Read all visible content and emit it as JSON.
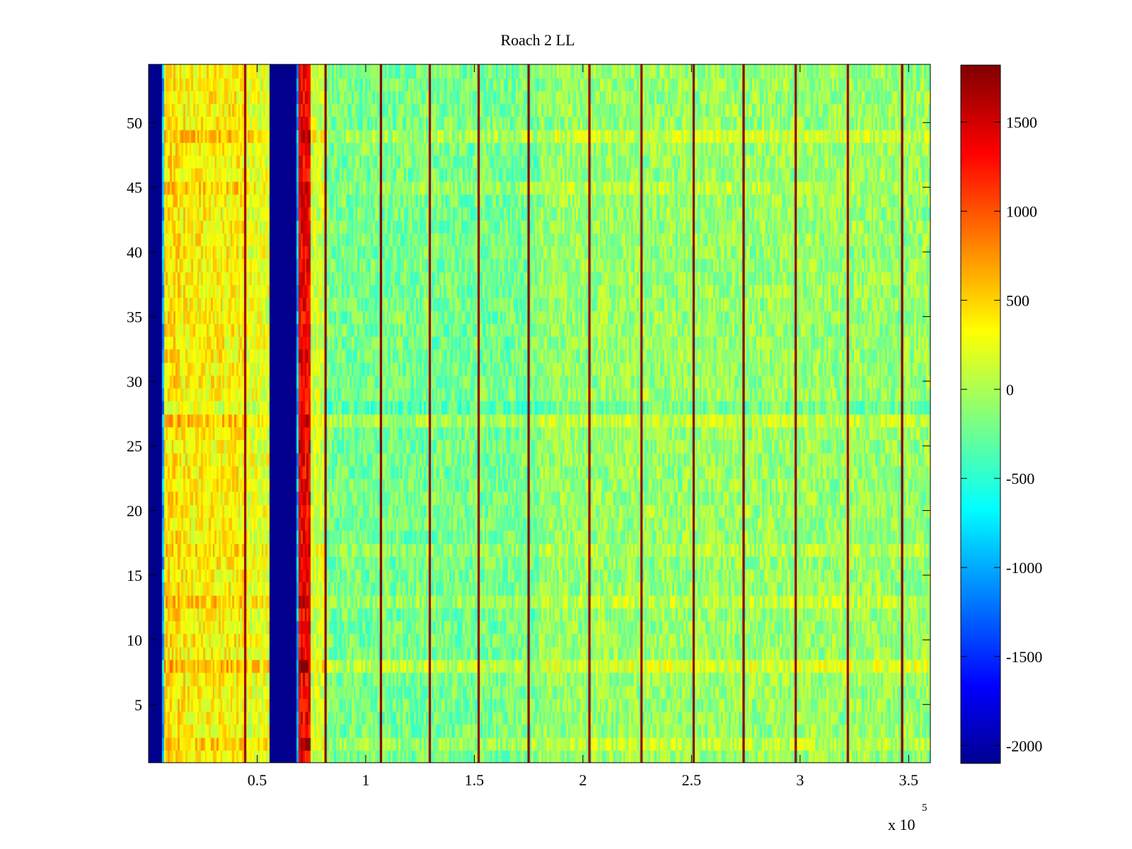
{
  "chart_data": {
    "type": "heatmap",
    "title": "Roach 2 LL",
    "xlabel": "",
    "ylabel": "",
    "x_exponent_label": "x 10",
    "x_exponent": "5",
    "x_scale": 100000,
    "xlim": [
      0,
      360000
    ],
    "ylim": [
      0.5,
      54.5
    ],
    "x_ticks": [
      50000,
      100000,
      150000,
      200000,
      250000,
      300000,
      350000
    ],
    "x_tick_labels": [
      "0.5",
      "1",
      "1.5",
      "2",
      "2.5",
      "3",
      "3.5"
    ],
    "y_ticks": [
      5,
      10,
      15,
      20,
      25,
      30,
      35,
      40,
      45,
      50
    ],
    "y_tick_labels": [
      "5",
      "10",
      "15",
      "20",
      "25",
      "30",
      "35",
      "40",
      "45",
      "50"
    ],
    "rows": 54,
    "colormap": "jet",
    "clim": [
      -2100,
      1820
    ],
    "colorbar_ticks": [
      -2000,
      -1500,
      -1000,
      -500,
      0,
      500,
      1000,
      1500
    ],
    "colorbar_tick_labels": [
      "-2000",
      "-1500",
      "-1000",
      "-500",
      "0",
      "500",
      "1000",
      "1500"
    ],
    "column_profile": [
      {
        "x0": 0,
        "x1": 6000,
        "value": -2050
      },
      {
        "x0": 6000,
        "x1": 7000,
        "value": -900
      },
      {
        "x0": 7000,
        "x1": 14000,
        "value": 450
      },
      {
        "x0": 14000,
        "x1": 45000,
        "value": 380
      },
      {
        "x0": 45000,
        "x1": 56000,
        "value": 250
      },
      {
        "x0": 56000,
        "x1": 68000,
        "value": -2050
      },
      {
        "x0": 68000,
        "x1": 69000,
        "value": -900
      },
      {
        "x0": 69000,
        "x1": 75000,
        "value": 1350
      },
      {
        "x0": 75000,
        "x1": 82000,
        "value": 150
      },
      {
        "x0": 82000,
        "x1": 180000,
        "value": -180
      },
      {
        "x0": 180000,
        "x1": 360000,
        "value": -50
      }
    ],
    "sharp_columns": [
      {
        "x": 44500,
        "value": 1700
      },
      {
        "x": 81500,
        "value": 1800
      },
      {
        "x": 107000,
        "value": 1800
      },
      {
        "x": 129500,
        "value": 1700
      },
      {
        "x": 152000,
        "value": 1750
      },
      {
        "x": 175000,
        "value": 1800
      },
      {
        "x": 203000,
        "value": 1700
      },
      {
        "x": 227000,
        "value": 1750
      },
      {
        "x": 251000,
        "value": 1800
      },
      {
        "x": 274000,
        "value": 1800
      },
      {
        "x": 298000,
        "value": 1750
      },
      {
        "x": 322000,
        "value": 1700
      },
      {
        "x": 347000,
        "value": 1800
      }
    ],
    "row_offsets": [
      {
        "row": 2,
        "value": 150
      },
      {
        "row": 8,
        "value": 250
      },
      {
        "row": 13,
        "value": 150
      },
      {
        "row": 17,
        "value": 100
      },
      {
        "row": 27,
        "value": 200
      },
      {
        "row": 28,
        "value": -150
      },
      {
        "row": 45,
        "value": 120
      },
      {
        "row": 49,
        "value": 200
      }
    ],
    "noise_amplitude": 280
  }
}
